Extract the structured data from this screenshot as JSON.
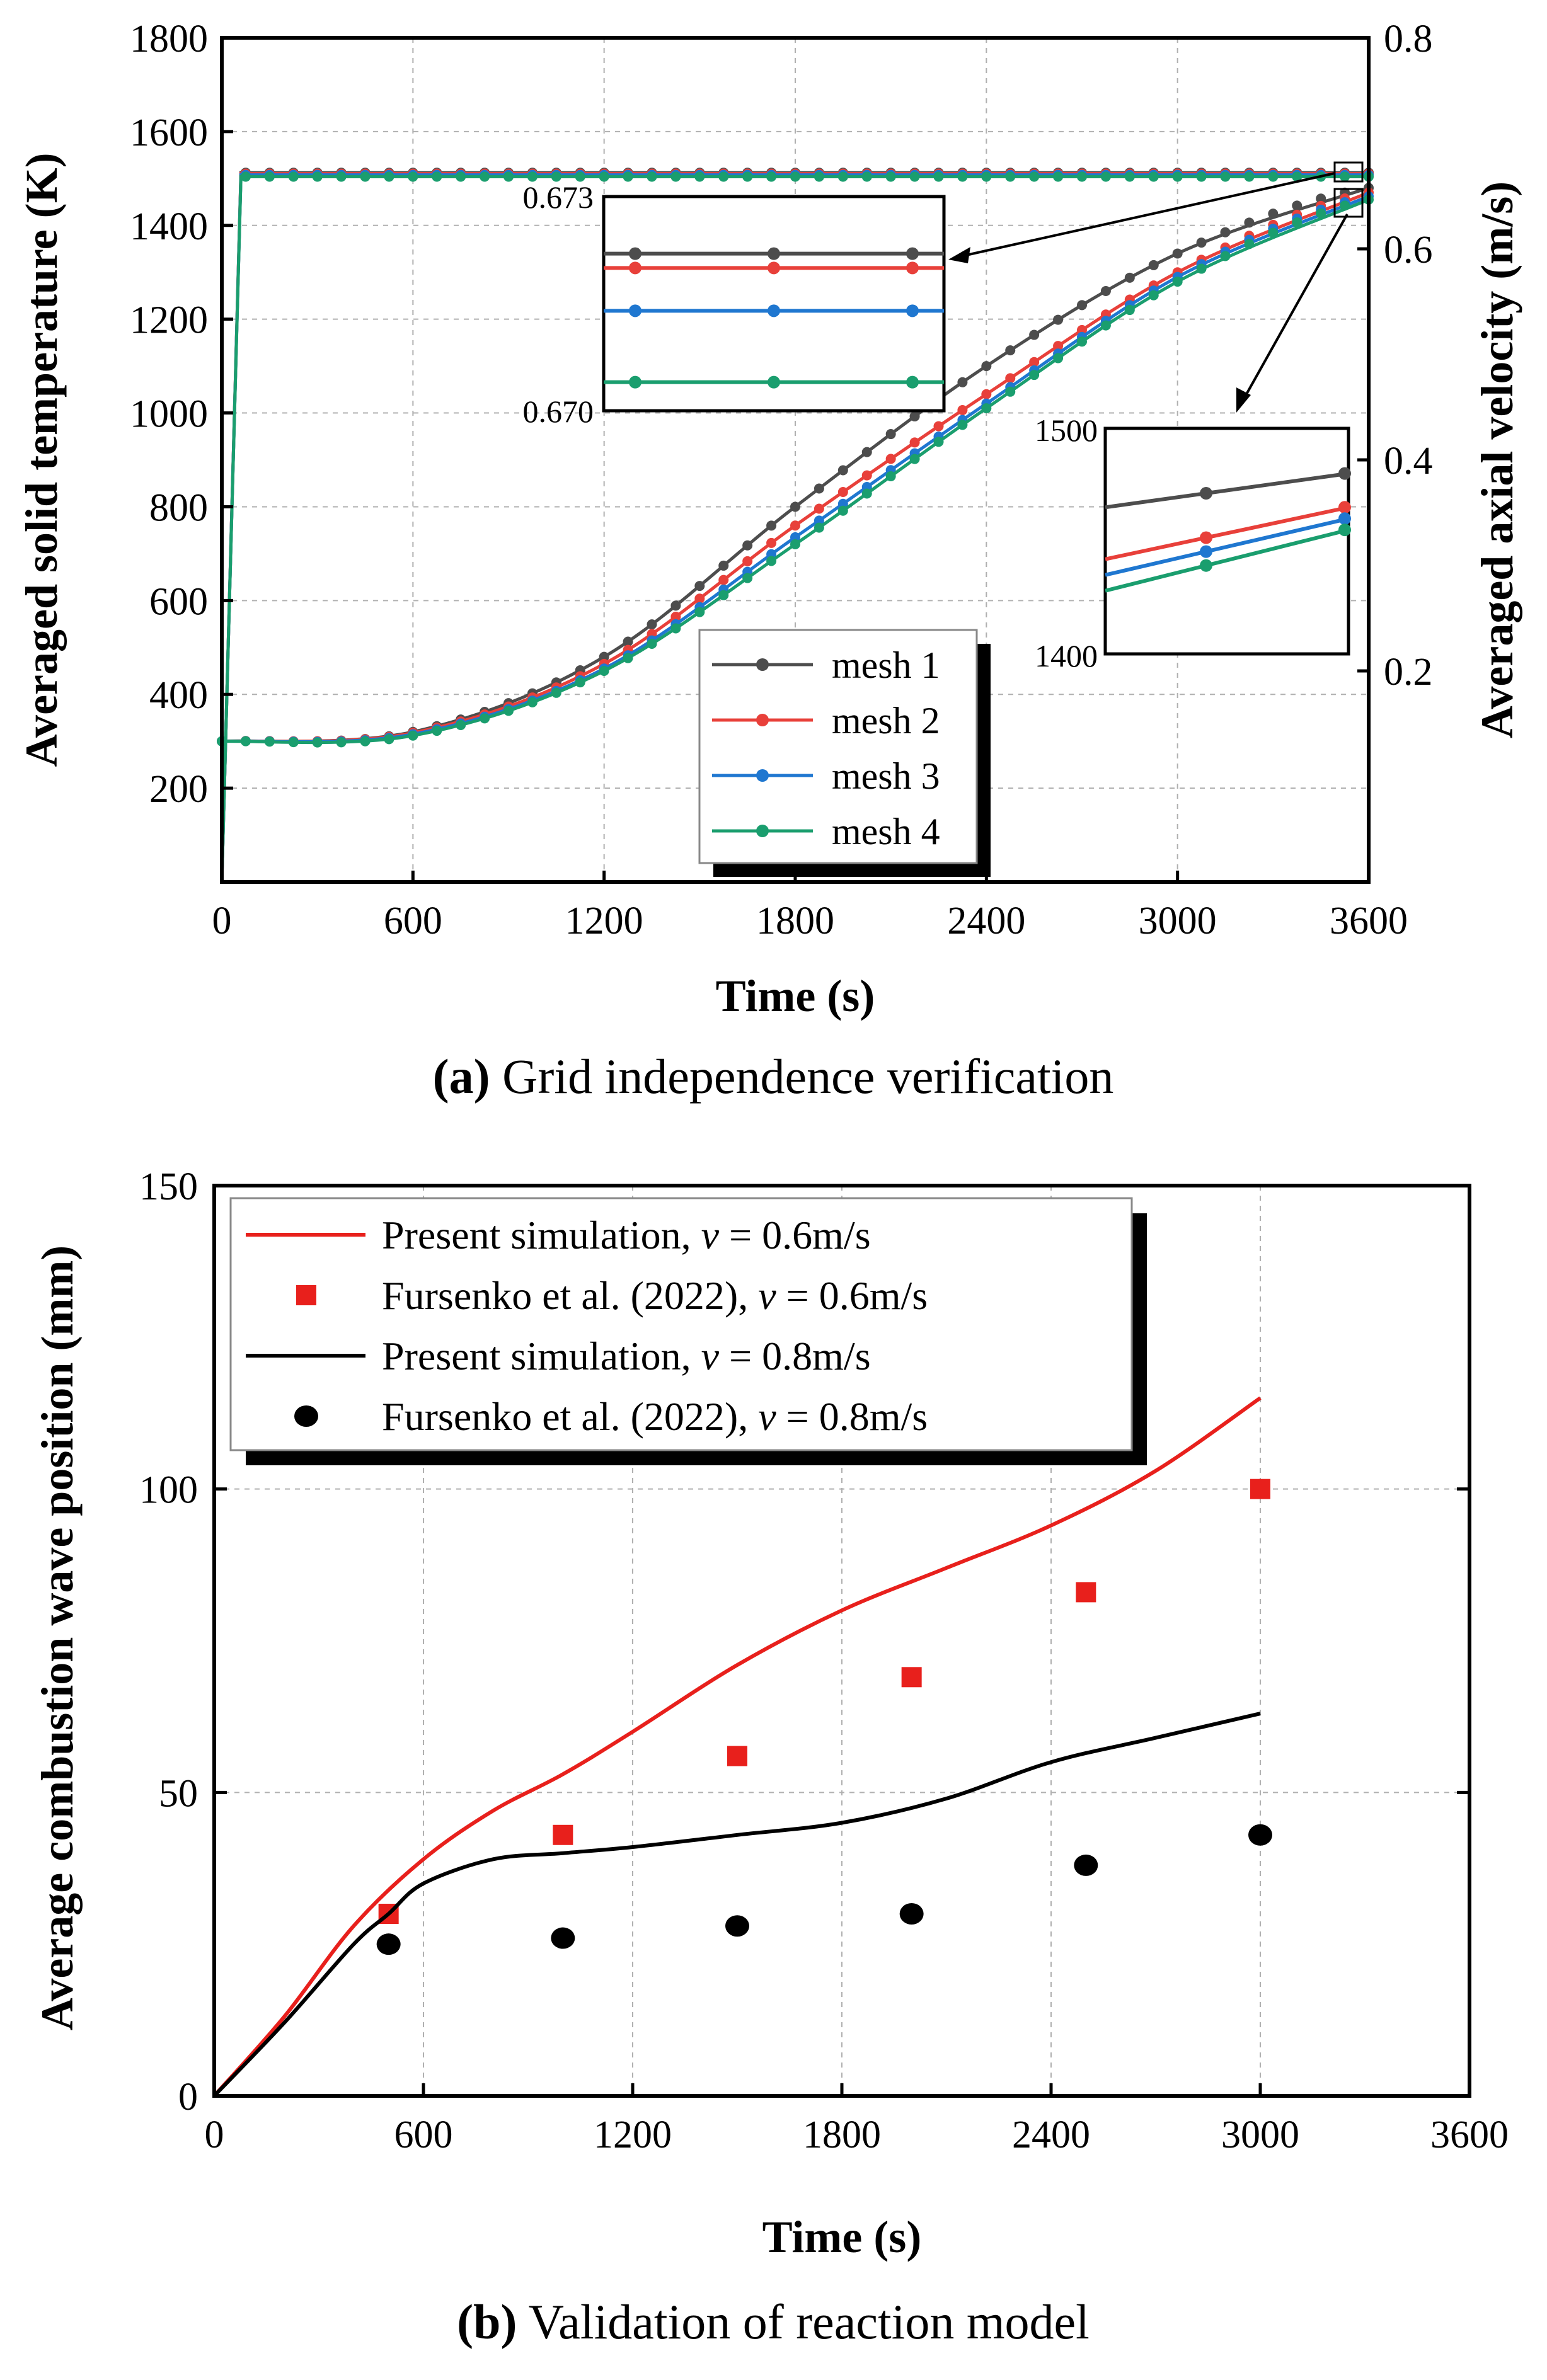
{
  "chart_data": [
    {
      "id": "a",
      "type": "line",
      "caption_tag": "(a)",
      "caption_text": " Grid independence verification",
      "xlabel": "Time (s)",
      "ylabel": "Averaged solid temperature (K)",
      "y2label": "Averaged axial velocity (m/s)",
      "xlim": [
        0,
        3600
      ],
      "ylim": [
        0,
        1800
      ],
      "y2lim": [
        0,
        0.8
      ],
      "xticks": [
        0,
        600,
        1200,
        1800,
        2400,
        3000,
        3600
      ],
      "yticks": [
        200,
        400,
        600,
        800,
        1000,
        1200,
        1400,
        1600,
        1800
      ],
      "y2ticks": [
        0.2,
        0.4,
        0.6,
        0.8
      ],
      "grid": true,
      "legend_position": "bottom-center",
      "series": [
        {
          "name": "mesh 1",
          "color": "#4d4d4d",
          "temperature": [
            [
              0,
              300
            ],
            [
              600,
              320
            ],
            [
              1200,
              480
            ],
            [
              1800,
              800
            ],
            [
              2400,
              1100
            ],
            [
              3000,
              1340
            ],
            [
              3600,
              1480
            ]
          ],
          "velocity_steady": 0.6722
        },
        {
          "name": "mesh 2",
          "color": "#e8403a",
          "temperature": [
            [
              0,
              300
            ],
            [
              600,
              318
            ],
            [
              1200,
              465
            ],
            [
              1800,
              760
            ],
            [
              2400,
              1040
            ],
            [
              3000,
              1300
            ],
            [
              3600,
              1470
            ]
          ],
          "velocity_steady": 0.672
        },
        {
          "name": "mesh 3",
          "color": "#1f77d0",
          "temperature": [
            [
              0,
              300
            ],
            [
              600,
              315
            ],
            [
              1200,
              455
            ],
            [
              1800,
              735
            ],
            [
              2400,
              1020
            ],
            [
              3000,
              1290
            ],
            [
              3600,
              1462
            ]
          ],
          "velocity_steady": 0.6715
        },
        {
          "name": "mesh 4",
          "color": "#1a9e6e",
          "temperature": [
            [
              0,
              300
            ],
            [
              600,
              312
            ],
            [
              1200,
              450
            ],
            [
              1800,
              720
            ],
            [
              2400,
              1010
            ],
            [
              3000,
              1280
            ],
            [
              3600,
              1455
            ]
          ],
          "velocity_steady": 0.6705
        }
      ],
      "insets": [
        {
          "label_top": "0.673",
          "label_bottom": "0.670",
          "ylim": [
            0.67,
            0.673
          ]
        },
        {
          "label_top": "1500",
          "label_bottom": "1400",
          "ylim": [
            1400,
            1500
          ]
        }
      ]
    },
    {
      "id": "b",
      "type": "line",
      "caption_tag": "(b)",
      "caption_text": " Validation of reaction model",
      "xlabel": "Time (s)",
      "ylabel": "Average combustion wave position (mm)",
      "xlim": [
        0,
        3600
      ],
      "ylim": [
        0,
        150
      ],
      "xticks": [
        0,
        600,
        1200,
        1800,
        2400,
        3000,
        3600
      ],
      "yticks": [
        0,
        50,
        100,
        150
      ],
      "grid": true,
      "legend_position": "top-left",
      "series": [
        {
          "name_prefix": "Present simulation, ",
          "name_var": "v",
          "name_suffix": " = 0.6m/s",
          "style": "line",
          "color": "#e8201c",
          "points": [
            [
              0,
              0
            ],
            [
              200,
              13
            ],
            [
              400,
              28
            ],
            [
              600,
              39
            ],
            [
              800,
              47
            ],
            [
              1000,
              53
            ],
            [
              1200,
              60
            ],
            [
              1500,
              71
            ],
            [
              1800,
              80
            ],
            [
              2100,
              87
            ],
            [
              2400,
              94
            ],
            [
              2700,
              103
            ],
            [
              3000,
              115
            ]
          ]
        },
        {
          "name_prefix": "Fursenko et al. (2022), ",
          "name_var": "v",
          "name_suffix": " = 0.6m/s",
          "style": "square",
          "color": "#e8201c",
          "points": [
            [
              500,
              30
            ],
            [
              1000,
              43
            ],
            [
              1500,
              56
            ],
            [
              2000,
              69
            ],
            [
              2500,
              83
            ],
            [
              3000,
              100
            ]
          ]
        },
        {
          "name_prefix": "Present simulation, ",
          "name_var": "v",
          "name_suffix": " = 0.8m/s",
          "style": "line",
          "color": "#000000",
          "points": [
            [
              0,
              0
            ],
            [
              200,
              12
            ],
            [
              400,
              25
            ],
            [
              500,
              30
            ],
            [
              600,
              35
            ],
            [
              800,
              39
            ],
            [
              1000,
              40
            ],
            [
              1200,
              41
            ],
            [
              1500,
              43
            ],
            [
              1800,
              45
            ],
            [
              2100,
              49
            ],
            [
              2400,
              55
            ],
            [
              2700,
              59
            ],
            [
              3000,
              63
            ]
          ]
        },
        {
          "name_prefix": "Fursenko et al. (2022), ",
          "name_var": "v",
          "name_suffix": " = 0.8m/s",
          "style": "circle",
          "color": "#000000",
          "points": [
            [
              500,
              25
            ],
            [
              1000,
              26
            ],
            [
              1500,
              28
            ],
            [
              2000,
              30
            ],
            [
              2500,
              38
            ],
            [
              3000,
              43
            ]
          ]
        }
      ]
    }
  ]
}
